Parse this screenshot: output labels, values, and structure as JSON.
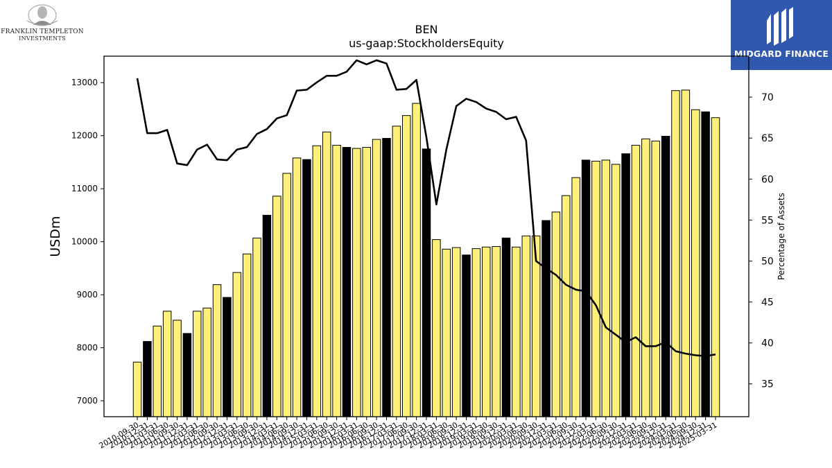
{
  "logos": {
    "left_line1": "FRANKLIN TEMPLETON",
    "left_line2": "INVESTMENTS",
    "right_text": "MIDGARD FINANCE"
  },
  "colors": {
    "bar_yellow": "#fff07a",
    "bar_black": "#000000",
    "line": "#000000",
    "brand_blue": "#2f58ae"
  },
  "chart_data": {
    "type": "bar",
    "title": "BEN",
    "subtitle": "us-gaap:StockholdersEquity",
    "ylabel": "USDm",
    "y2label": "Percentage of Assets",
    "ylim": [
      6700,
      13500
    ],
    "y2lim": [
      31,
      75
    ],
    "yticks": [
      7000,
      8000,
      9000,
      10000,
      11000,
      12000,
      13000
    ],
    "y2ticks": [
      35,
      40,
      45,
      50,
      55,
      60,
      65,
      70
    ],
    "categories": [
      "2010-09-30",
      "2010-12-31",
      "2011-03-31",
      "2011-06-30",
      "2011-09-30",
      "2011-12-31",
      "2012-03-31",
      "2012-06-30",
      "2012-09-30",
      "2012-12-31",
      "2013-03-31",
      "2013-06-30",
      "2013-09-30",
      "2013-12-31",
      "2014-03-31",
      "2014-06-30",
      "2014-09-30",
      "2014-12-31",
      "2015-03-31",
      "2015-06-30",
      "2015-09-30",
      "2015-12-31",
      "2016-03-31",
      "2016-06-30",
      "2016-09-30",
      "2016-12-31",
      "2017-03-31",
      "2017-06-30",
      "2017-09-30",
      "2017-12-31",
      "2018-03-31",
      "2018-06-30",
      "2018-09-30",
      "2018-12-31",
      "2019-03-31",
      "2019-06-30",
      "2019-09-30",
      "2019-12-31",
      "2020-03-31",
      "2020-06-30",
      "2020-09-30",
      "2020-12-31",
      "2021-03-31",
      "2021-06-30",
      "2021-09-30",
      "2021-12-31",
      "2022-03-31",
      "2022-06-30",
      "2022-09-30",
      "2022-12-31",
      "2023-03-31",
      "2023-06-30",
      "2023-09-30",
      "2023-12-31",
      "2024-03-31",
      "2024-06-30",
      "2024-09-30",
      "2024-12-31",
      "2025-03-31"
    ],
    "series": [
      {
        "type": "bar",
        "values": [
          7730,
          8120,
          8410,
          8690,
          8520,
          8270,
          8690,
          8750,
          9190,
          8950,
          9420,
          9770,
          10070,
          10500,
          10860,
          11290,
          11580,
          11550,
          11810,
          12070,
          11820,
          11780,
          11760,
          11780,
          11930,
          11950,
          12180,
          12380,
          12610,
          11750,
          10040,
          9860,
          9890,
          9750,
          9870,
          9900,
          9910,
          10070,
          9900,
          10110,
          10110,
          10400,
          10560,
          10870,
          11210,
          11540,
          11520,
          11540,
          11460,
          11660,
          11820,
          11940,
          11900,
          11990,
          12850,
          12860,
          12490,
          12450,
          12340
        ],
        "highlight": [
          false,
          true,
          false,
          false,
          false,
          true,
          false,
          false,
          false,
          true,
          false,
          false,
          false,
          true,
          false,
          false,
          false,
          true,
          false,
          false,
          false,
          true,
          false,
          false,
          false,
          true,
          false,
          false,
          false,
          true,
          false,
          false,
          false,
          true,
          false,
          false,
          false,
          true,
          false,
          false,
          false,
          true,
          false,
          false,
          false,
          true,
          false,
          false,
          false,
          true,
          false,
          false,
          false,
          true,
          false,
          false,
          false,
          true,
          false
        ]
      },
      {
        "type": "line",
        "axis": "right",
        "values": [
          72.3,
          65.6,
          65.6,
          66.0,
          61.9,
          61.7,
          63.6,
          64.2,
          62.4,
          62.3,
          63.6,
          63.9,
          65.5,
          66.1,
          67.4,
          67.8,
          70.8,
          70.9,
          71.8,
          72.6,
          72.6,
          73.1,
          74.5,
          74.0,
          74.5,
          74.1,
          70.9,
          71.0,
          72.1,
          65.1,
          56.9,
          63.6,
          68.9,
          69.8,
          69.4,
          68.6,
          68.2,
          67.3,
          67.6,
          64.7,
          50.0,
          49.1,
          48.3,
          47.1,
          46.5,
          46.3,
          44.6,
          41.9,
          41.0,
          40.1,
          40.7,
          39.6,
          39.6,
          40.1,
          39.0,
          38.7,
          38.5,
          38.4,
          38.6
        ]
      }
    ]
  }
}
